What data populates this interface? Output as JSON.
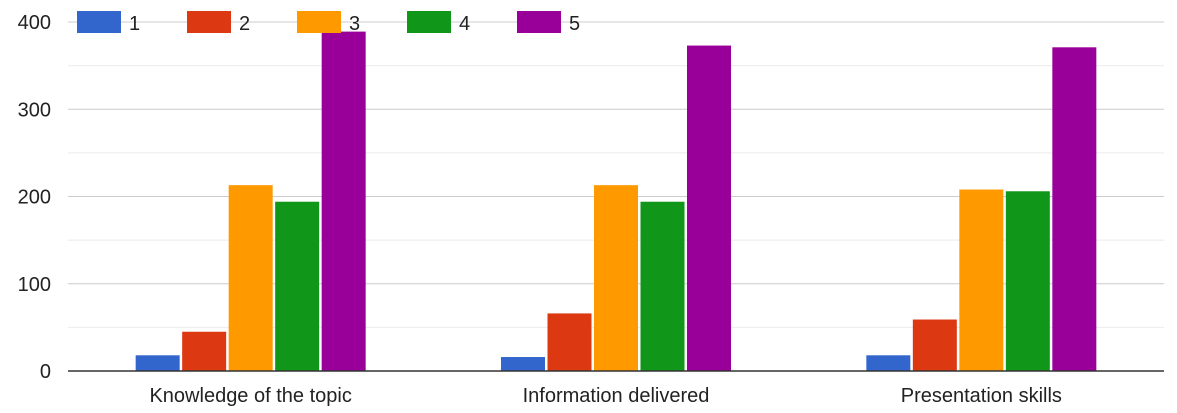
{
  "chart_data": {
    "type": "bar",
    "categories": [
      "Knowledge of the topic",
      "Information delivered",
      "Presentation skills"
    ],
    "series": [
      {
        "name": "1",
        "color": "#3366cc",
        "values": [
          18,
          16,
          18
        ]
      },
      {
        "name": "2",
        "color": "#dc3912",
        "values": [
          45,
          66,
          59
        ]
      },
      {
        "name": "3",
        "color": "#ff9900",
        "values": [
          213,
          213,
          208
        ]
      },
      {
        "name": "4",
        "color": "#109618",
        "values": [
          194,
          194,
          206
        ]
      },
      {
        "name": "5",
        "color": "#990099",
        "values": [
          389,
          373,
          371
        ]
      }
    ],
    "ylim": [
      0,
      400
    ],
    "yticks": [
      0,
      100,
      200,
      300,
      400
    ],
    "minor_grid_step": 50,
    "grid": true,
    "legend_position": "top-left"
  }
}
